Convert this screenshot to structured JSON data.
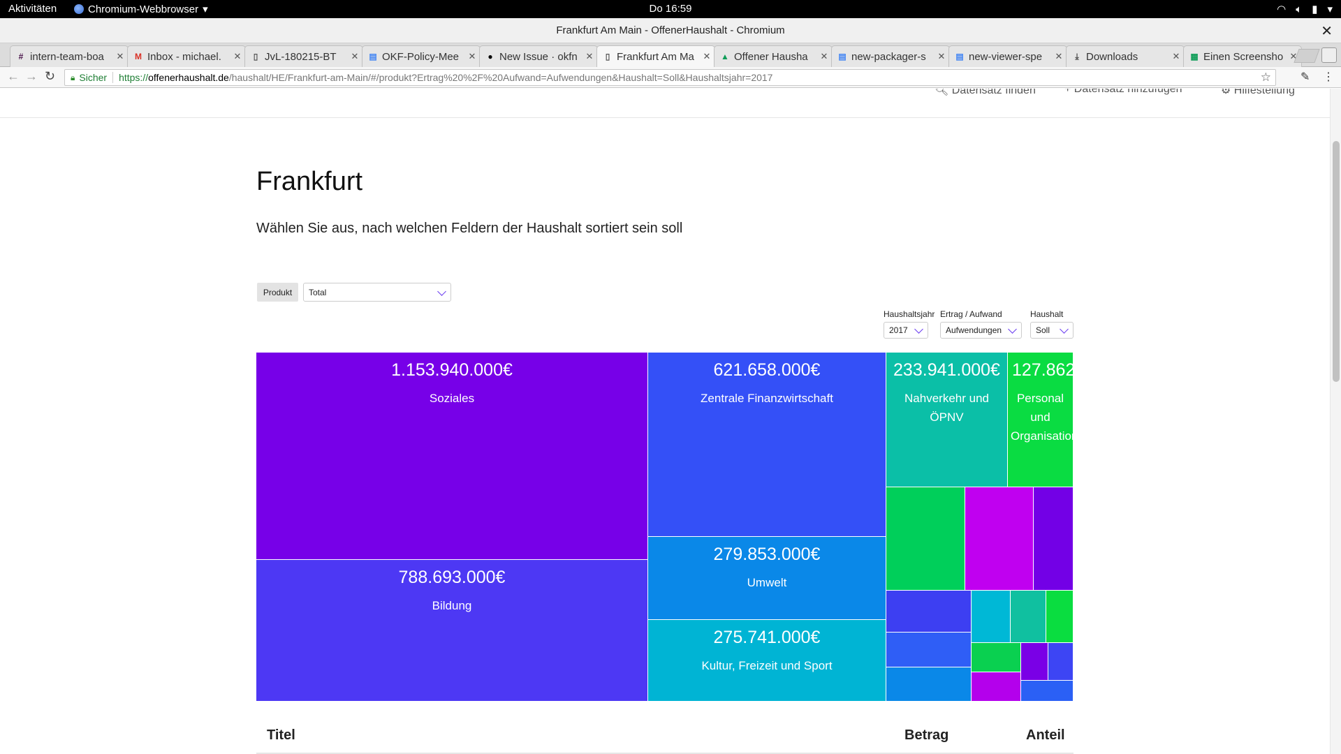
{
  "os": {
    "activities": "Aktivitäten",
    "app_name": "Chromium-Webbrowser",
    "clock": "Do 16:59"
  },
  "window": {
    "title": "Frankfurt Am Main - OffenerHaushalt - Chromium"
  },
  "tabs": [
    {
      "label": "intern-team-boa",
      "icon": "slack-icon",
      "color": "#4a154b"
    },
    {
      "label": "Inbox - michael.",
      "icon": "gmail-icon",
      "color": "#d93025"
    },
    {
      "label": "JvL-180215-BT",
      "icon": "document-icon",
      "color": "#555555"
    },
    {
      "label": "OKF-Policy-Mee",
      "icon": "google-docs-icon",
      "color": "#4285f4"
    },
    {
      "label": "New Issue · okfn",
      "icon": "github-icon",
      "color": "#000000"
    },
    {
      "label": "Frankfurt Am Ma",
      "icon": "document-icon",
      "color": "#555555"
    },
    {
      "label": "Offener Hausha",
      "icon": "google-drive-icon",
      "color": "#0f9d58"
    },
    {
      "label": "new-packager-s",
      "icon": "google-docs-icon",
      "color": "#4285f4"
    },
    {
      "label": "new-viewer-spe",
      "icon": "google-docs-icon",
      "color": "#4285f4"
    },
    {
      "label": "Downloads",
      "icon": "download-icon",
      "color": "#444444"
    },
    {
      "label": "Einen Screensho",
      "icon": "google-sheets-icon",
      "color": "#0f9d58"
    }
  ],
  "toolbar": {
    "secure_label": "Sicher",
    "url_scheme": "https://",
    "url_host": "offenerhaushalt.de",
    "url_path": "/haushalt/HE/Frankfurt-am-Main/#/produkt?Ertrag%20%2F%20Aufwand=Aufwendungen&Haushalt=Soll&Haushaltsjahr=2017"
  },
  "site_nav": {
    "find": "Datensatz finden",
    "add": "Datensatz hinzufügen",
    "help": "Hilfestellung"
  },
  "page": {
    "title": "Frankfurt",
    "subtitle": "Wählen Sie aus, nach welchen Feldern der Haushalt sortiert sein soll"
  },
  "controls": {
    "produkt_button": "Produkt",
    "produkt_select": "Total",
    "filters": [
      {
        "label": "Haushaltsjahr",
        "value": "2017"
      },
      {
        "label": "Ertrag / Aufwand",
        "value": "Aufwendungen"
      },
      {
        "label": "Haushalt",
        "value": "Soll"
      }
    ]
  },
  "treemap": {
    "cells": [
      {
        "amount": "1.153.940.000€",
        "name": "Soziales",
        "color": "#7700e8"
      },
      {
        "amount": "788.693.000€",
        "name": "Bildung",
        "color": "#4d38f4"
      },
      {
        "amount": "621.658.000€",
        "name": "Zentrale Finanzwirtschaft",
        "color": "#3450f7"
      },
      {
        "amount": "279.853.000€",
        "name": "Umwelt",
        "color": "#0a88e8"
      },
      {
        "amount": "275.741.000€",
        "name": "Kultur, Freizeit und Sport",
        "color": "#00b4d4"
      },
      {
        "amount": "233.941.000€",
        "name": "Nahverkehr und ÖPNV",
        "color": "#0bbfa7"
      },
      {
        "amount": "127.862",
        "name": "Personal und Organisation",
        "color": "#0adc42"
      }
    ],
    "small_colors": [
      "#00cf5a",
      "#c000f0",
      "#7300e6",
      "#3d3ff2",
      "#2f5ef6",
      "#0a88e8",
      "#00b8d6",
      "#10c0a0",
      "#0add40",
      "#0ad050",
      "#7a00e6",
      "#3d45f4",
      "#b400ec",
      "#2b60f5"
    ]
  },
  "table": {
    "col_title": "Titel",
    "col_amount": "Betrag",
    "col_share": "Anteil"
  }
}
